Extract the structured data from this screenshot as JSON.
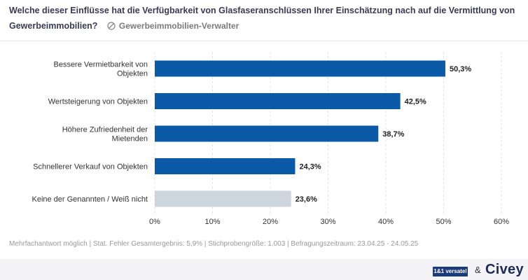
{
  "header": {
    "question": "Welche dieser Einflüsse hat die Verfügbarkeit von Glasfaseranschlüssen Ihrer Einschätzung nach auf die Vermittlung von Gewerbeimmobilien?",
    "audience": "Gewerbeimmobilien-Verwalter",
    "audience_icon": "target-icon"
  },
  "chart_data": {
    "type": "bar",
    "orientation": "horizontal",
    "categories": [
      "Bessere Vermietbarkeit von Objekten",
      "Wertsteigerung von Objekten",
      "Höhere Zufriedenheit der Mietenden",
      "Schnellerer Verkauf von Objekten",
      "Keine der Genannten / Weiß nicht"
    ],
    "values": [
      50.3,
      42.5,
      38.7,
      24.3,
      23.6
    ],
    "value_labels": [
      "50,3%",
      "42,5%",
      "38,7%",
      "24,3%",
      "23,6%"
    ],
    "bar_colors": [
      "#0a5aa8",
      "#0a5aa8",
      "#0a5aa8",
      "#0a5aa8",
      "#cdd5dd"
    ],
    "xlim": [
      0,
      60
    ],
    "xticks": [
      0,
      10,
      20,
      30,
      40,
      50,
      60
    ],
    "xtick_labels": [
      "0%",
      "10%",
      "20%",
      "30%",
      "40%",
      "50%",
      "60%"
    ],
    "grid": true
  },
  "footnote": "Mehrfachantwort möglich | Stat. Fehler Gesamtergebnis: 5,9% | Stichprobengröße: 1.003 | Befragungszeitraum: 23.04.25 - 24.05.25",
  "footer": {
    "logo_left": "1&1 versatel",
    "amp": "&",
    "logo_right": "Civey"
  }
}
